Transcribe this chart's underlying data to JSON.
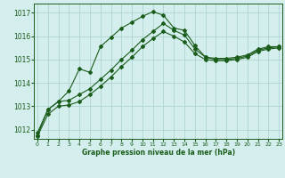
{
  "xlabel": "Graphe pression niveau de la mer (hPa)",
  "bg_color": "#d4eeed",
  "grid_color": "#aed4d0",
  "line_color": "#1a5c1a",
  "ylim": [
    1011.6,
    1017.4
  ],
  "xlim": [
    -0.3,
    23.3
  ],
  "yticks": [
    1012,
    1013,
    1014,
    1015,
    1016,
    1017
  ],
  "xticks": [
    0,
    1,
    2,
    3,
    4,
    5,
    6,
    7,
    8,
    9,
    10,
    11,
    12,
    13,
    14,
    15,
    16,
    17,
    18,
    19,
    20,
    21,
    22,
    23
  ],
  "series_peak_x": [
    0,
    1,
    2,
    3,
    4,
    5,
    6,
    7,
    8,
    9,
    10,
    11,
    12,
    13,
    14,
    15,
    16,
    17,
    18,
    19,
    20,
    21,
    22,
    23
  ],
  "series_peak_y": [
    1011.75,
    1012.85,
    1013.2,
    1013.65,
    1014.6,
    1014.45,
    1015.55,
    1015.95,
    1016.35,
    1016.6,
    1016.85,
    1017.05,
    1016.9,
    1016.35,
    1016.25,
    1015.6,
    1015.1,
    1015.05,
    1015.05,
    1015.1,
    1015.2,
    1015.45,
    1015.55,
    1015.55
  ],
  "series_mid_x": [
    0,
    1,
    2,
    3,
    4,
    5,
    6,
    7,
    8,
    9,
    10,
    11,
    12,
    13,
    14,
    15,
    16,
    17,
    18,
    19,
    20,
    21,
    22,
    23
  ],
  "series_mid_y": [
    1011.85,
    1012.85,
    1013.2,
    1013.25,
    1013.5,
    1013.75,
    1014.15,
    1014.55,
    1015.0,
    1015.4,
    1015.85,
    1016.2,
    1016.55,
    1016.25,
    1016.05,
    1015.45,
    1015.1,
    1015.0,
    1015.0,
    1015.05,
    1015.15,
    1015.4,
    1015.5,
    1015.55
  ],
  "series_low_x": [
    0,
    1,
    2,
    3,
    4,
    5,
    6,
    7,
    8,
    9,
    10,
    11,
    12,
    13,
    14,
    15,
    16,
    17,
    18,
    19,
    20,
    21,
    22,
    23
  ],
  "series_low_y": [
    1011.7,
    1012.65,
    1013.0,
    1013.05,
    1013.2,
    1013.5,
    1013.85,
    1014.25,
    1014.7,
    1015.1,
    1015.55,
    1015.9,
    1016.2,
    1016.0,
    1015.75,
    1015.25,
    1015.0,
    1014.95,
    1014.95,
    1015.0,
    1015.1,
    1015.35,
    1015.45,
    1015.5
  ]
}
